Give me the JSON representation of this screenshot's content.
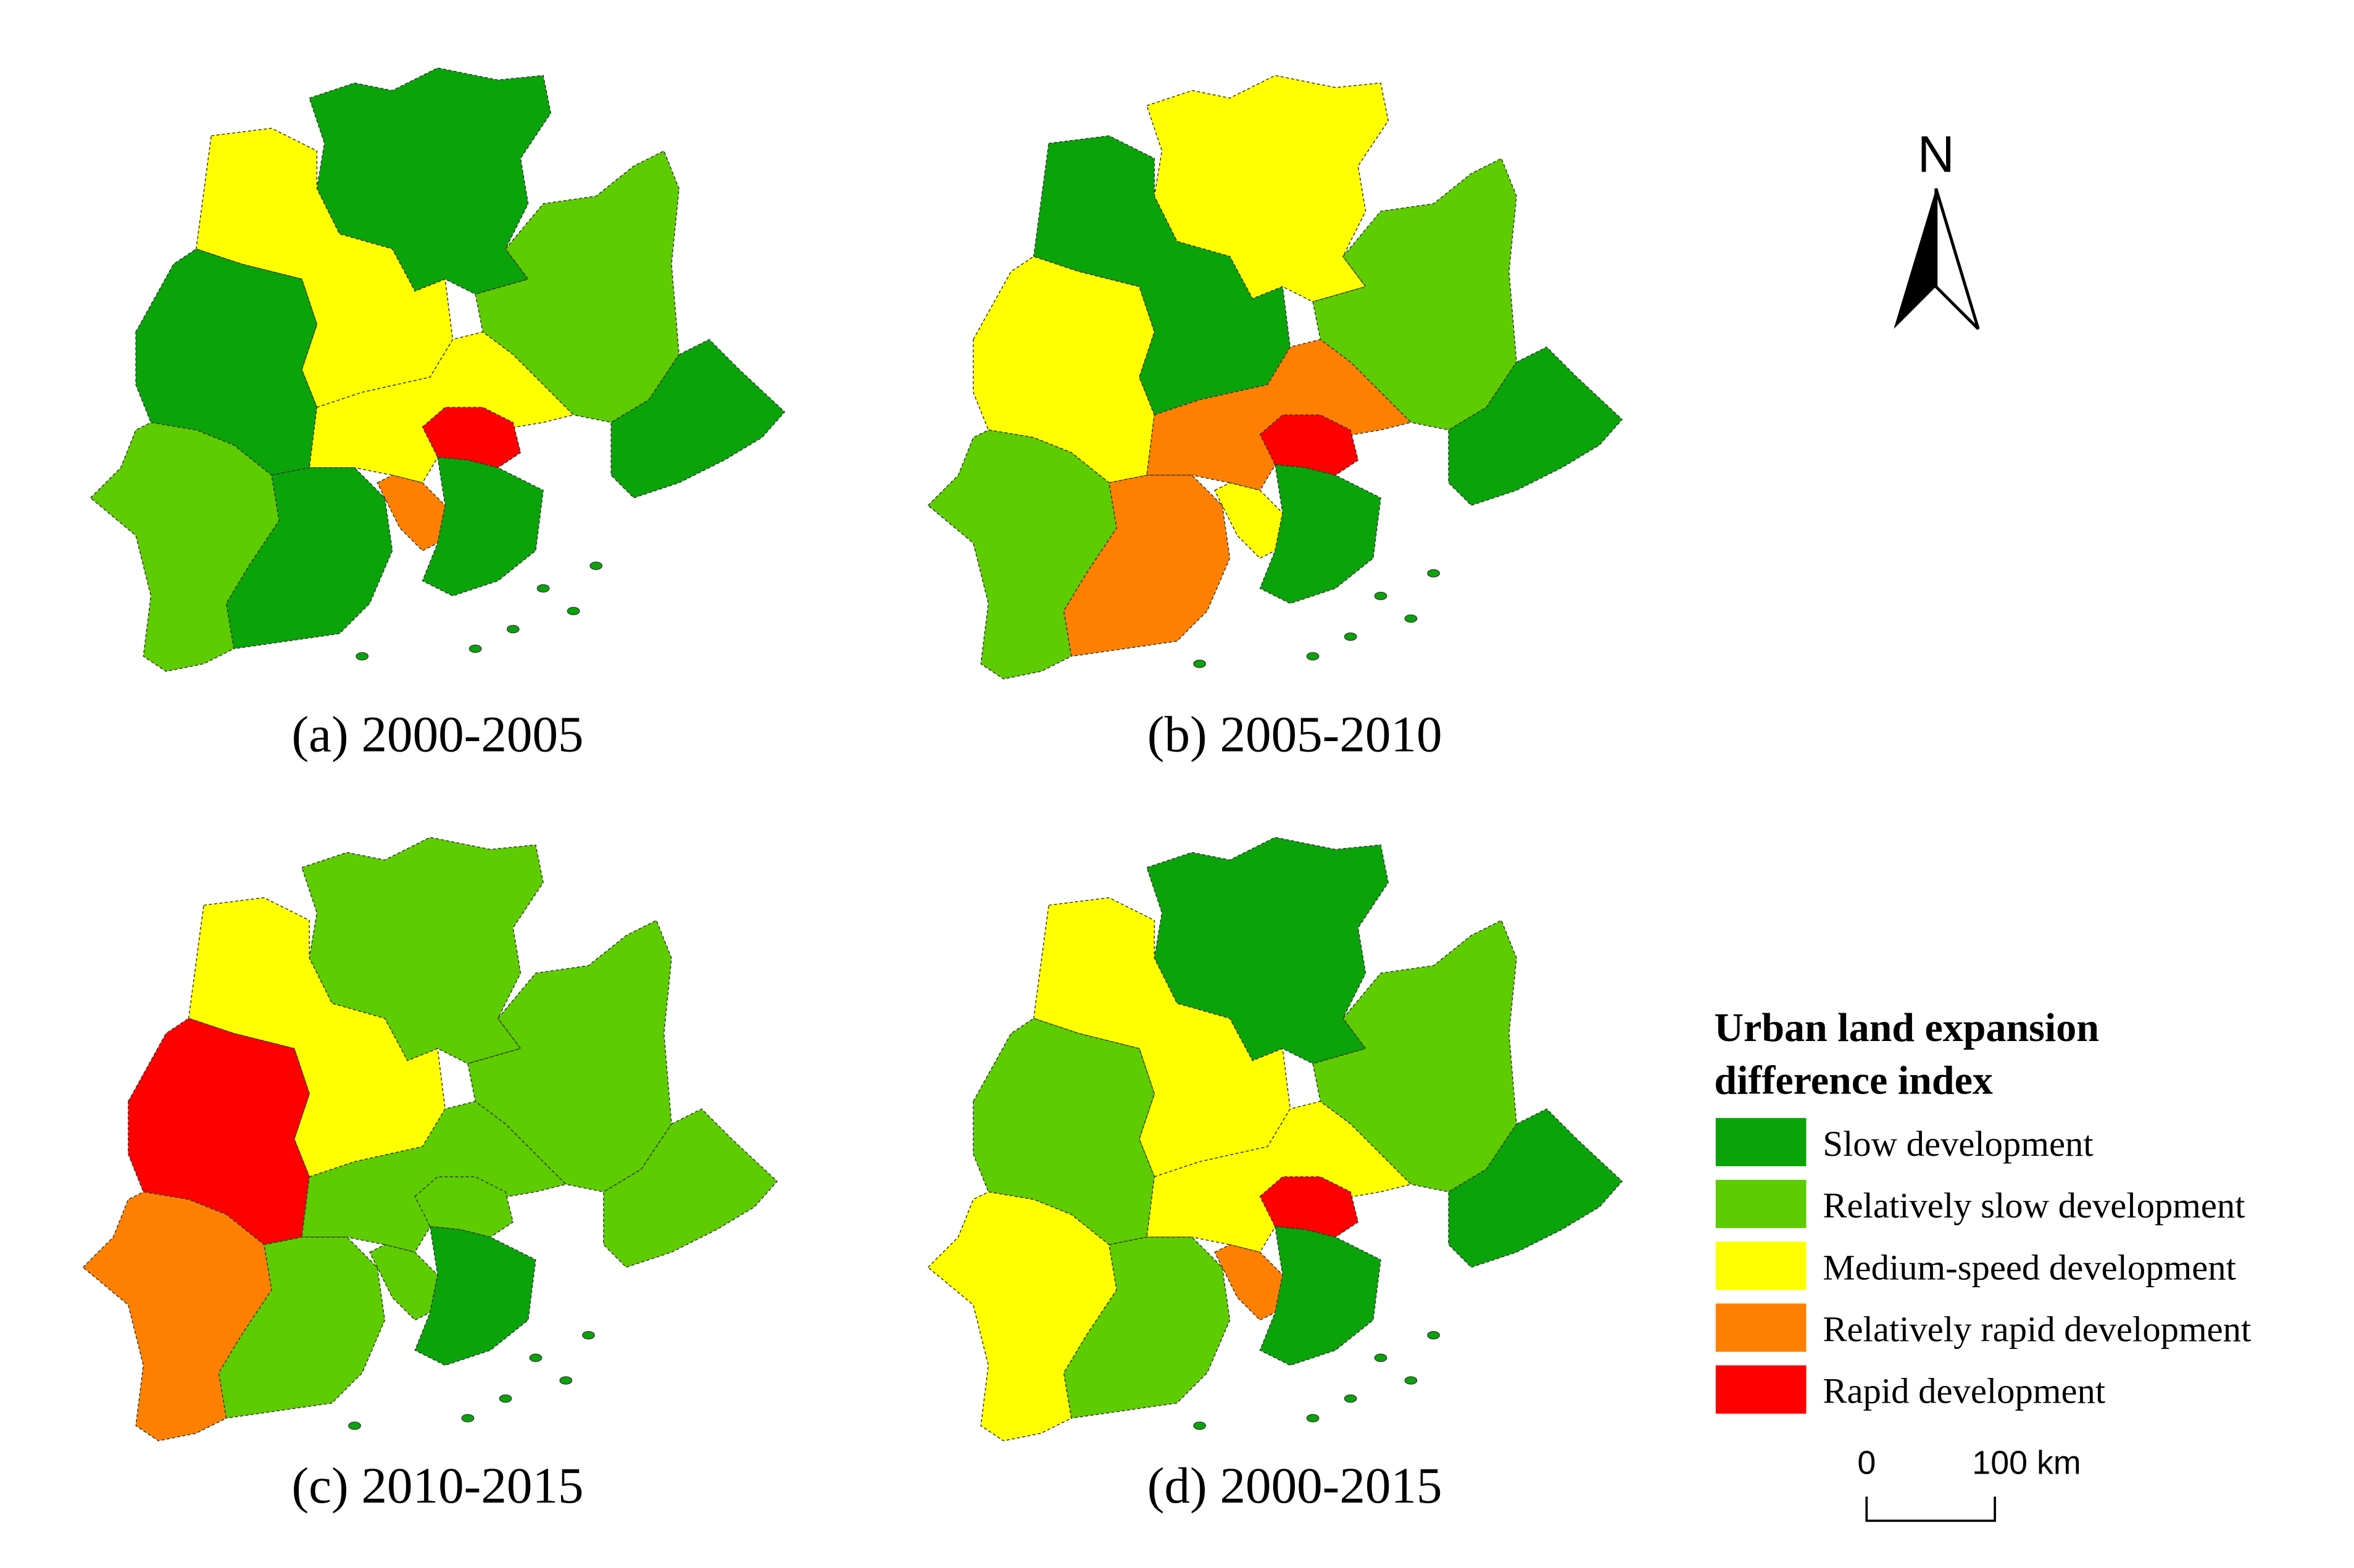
{
  "panels": [
    {
      "caption": "(a) 2000-2005"
    },
    {
      "caption": "(b) 2005-2010"
    },
    {
      "caption": "(c) 2010-2015"
    },
    {
      "caption": "(d) 2000-2015"
    }
  ],
  "legend": {
    "title": [
      "Urban land expansion",
      "difference index"
    ],
    "items": [
      {
        "label": "Slow development",
        "color": "#0aa30a"
      },
      {
        "label": "Relatively slow development",
        "color": "#5dcc00"
      },
      {
        "label": "Medium-speed development",
        "color": "#ffff00"
      },
      {
        "label": "Relatively rapid development",
        "color": "#ff8000"
      },
      {
        "label": "Rapid development",
        "color": "#ff0000"
      }
    ]
  },
  "north_arrow": {
    "label": "N"
  },
  "scale_bar": {
    "labels": [
      "0",
      "100 km"
    ]
  }
}
